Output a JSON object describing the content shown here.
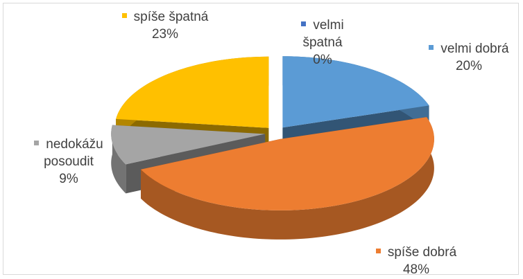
{
  "chart_data": {
    "type": "pie",
    "categories": [
      "velmi dobrá",
      "spíše dobrá",
      "nedokážu posoudit",
      "spíše špatná",
      "velmi špatná"
    ],
    "values": [
      20,
      48,
      9,
      23,
      0
    ],
    "value_labels": [
      "20%",
      "48%",
      "9%",
      "23%",
      "0%"
    ],
    "colors": [
      "#5b9bd5",
      "#ed7d31",
      "#a5a5a5",
      "#ffc000",
      "#4472c4"
    ]
  }
}
